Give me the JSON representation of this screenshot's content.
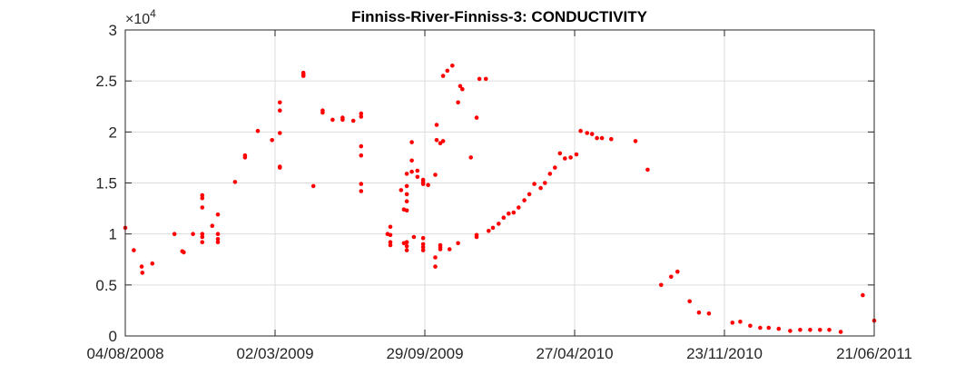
{
  "chart_data": {
    "type": "scatter",
    "title": "Finniss-River-Finniss-3: CONDUCTIVITY",
    "xlabel": "",
    "ylabel": "",
    "x_axis_type": "date",
    "xlim": [
      "2008-08-04",
      "2011-06-21"
    ],
    "xticks": [
      "04/08/2008",
      "02/03/2009",
      "29/09/2009",
      "27/04/2010",
      "23/11/2010",
      "21/06/2011"
    ],
    "ylim": [
      0,
      30000
    ],
    "yticks": [
      "0",
      "0.5",
      "1",
      "1.5",
      "2",
      "2.5",
      "3"
    ],
    "y_multiplier": {
      "base": "×10",
      "exponent": "4"
    },
    "grid": true,
    "marker_color": "#ff0000",
    "series": [
      {
        "points": [
          [
            "2008-08-04",
            10600
          ],
          [
            "2008-08-16",
            8400
          ],
          [
            "2008-08-27",
            6800
          ],
          [
            "2008-08-28",
            6200
          ],
          [
            "2008-09-11",
            7100
          ],
          [
            "2008-10-12",
            10000
          ],
          [
            "2008-10-23",
            8300
          ],
          [
            "2008-10-25",
            8200
          ],
          [
            "2008-11-07",
            10000
          ],
          [
            "2008-11-20",
            13800
          ],
          [
            "2008-11-20",
            13500
          ],
          [
            "2008-11-20",
            12600
          ],
          [
            "2008-11-20",
            10000
          ],
          [
            "2008-11-20",
            9700
          ],
          [
            "2008-11-20",
            9200
          ],
          [
            "2008-12-04",
            10800
          ],
          [
            "2008-12-12",
            11900
          ],
          [
            "2008-12-12",
            10000
          ],
          [
            "2008-12-12",
            9500
          ],
          [
            "2008-12-12",
            9200
          ],
          [
            "2009-01-05",
            15100
          ],
          [
            "2009-01-19",
            17700
          ],
          [
            "2009-01-19",
            17500
          ],
          [
            "2009-02-06",
            20100
          ],
          [
            "2009-02-26",
            19200
          ],
          [
            "2009-03-09",
            22900
          ],
          [
            "2009-03-09",
            22100
          ],
          [
            "2009-03-09",
            19900
          ],
          [
            "2009-03-09",
            16600
          ],
          [
            "2009-03-09",
            16500
          ],
          [
            "2009-04-11",
            25800
          ],
          [
            "2009-04-11",
            25600
          ],
          [
            "2009-04-11",
            25500
          ],
          [
            "2009-04-25",
            14700
          ],
          [
            "2009-05-08",
            22100
          ],
          [
            "2009-05-08",
            21900
          ],
          [
            "2009-05-22",
            21200
          ],
          [
            "2009-06-05",
            21400
          ],
          [
            "2009-06-05",
            21200
          ],
          [
            "2009-06-20",
            21100
          ],
          [
            "2009-07-01",
            21800
          ],
          [
            "2009-07-01",
            21500
          ],
          [
            "2009-07-01",
            18600
          ],
          [
            "2009-07-01",
            17700
          ],
          [
            "2009-07-01",
            14900
          ],
          [
            "2009-07-01",
            14200
          ],
          [
            "2009-08-07",
            10000
          ],
          [
            "2009-08-11",
            10700
          ],
          [
            "2009-08-11",
            9900
          ],
          [
            "2009-08-11",
            9200
          ],
          [
            "2009-08-11",
            8900
          ],
          [
            "2009-08-26",
            14300
          ],
          [
            "2009-08-30",
            9100
          ],
          [
            "2009-08-30",
            12400
          ],
          [
            "2009-09-03",
            15900
          ],
          [
            "2009-09-03",
            14700
          ],
          [
            "2009-09-03",
            13900
          ],
          [
            "2009-09-03",
            13200
          ],
          [
            "2009-09-03",
            12300
          ],
          [
            "2009-09-03",
            9200
          ],
          [
            "2009-09-03",
            8800
          ],
          [
            "2009-09-03",
            8400
          ],
          [
            "2009-09-10",
            19000
          ],
          [
            "2009-09-10",
            17200
          ],
          [
            "2009-09-10",
            16100
          ],
          [
            "2009-09-13",
            9700
          ],
          [
            "2009-09-18",
            16200
          ],
          [
            "2009-09-18",
            15600
          ],
          [
            "2009-09-26",
            15300
          ],
          [
            "2009-09-26",
            15100
          ],
          [
            "2009-09-26",
            14900
          ],
          [
            "2009-09-26",
            9600
          ],
          [
            "2009-09-26",
            9000
          ],
          [
            "2009-09-26",
            8700
          ],
          [
            "2009-09-26",
            8400
          ],
          [
            "2009-10-03",
            14800
          ],
          [
            "2009-10-13",
            15800
          ],
          [
            "2009-10-13",
            7700
          ],
          [
            "2009-10-13",
            6800
          ],
          [
            "2009-10-15",
            20700
          ],
          [
            "2009-10-15",
            19200
          ],
          [
            "2009-10-20",
            18900
          ],
          [
            "2009-10-20",
            8900
          ],
          [
            "2009-10-20",
            8700
          ],
          [
            "2009-10-20",
            8500
          ],
          [
            "2009-10-24",
            19100
          ],
          [
            "2009-10-24",
            25500
          ],
          [
            "2009-10-30",
            26000
          ],
          [
            "2009-11-02",
            8500
          ],
          [
            "2009-11-06",
            26500
          ],
          [
            "2009-11-14",
            22900
          ],
          [
            "2009-11-14",
            9100
          ],
          [
            "2009-11-17",
            24500
          ],
          [
            "2009-11-20",
            24200
          ],
          [
            "2009-12-02",
            17500
          ],
          [
            "2009-12-10",
            21400
          ],
          [
            "2009-12-10",
            9900
          ],
          [
            "2009-12-10",
            9700
          ],
          [
            "2009-12-14",
            25200
          ],
          [
            "2009-12-23",
            25200
          ],
          [
            "2009-12-27",
            10300
          ],
          [
            "2010-01-02",
            10600
          ],
          [
            "2010-01-10",
            11000
          ],
          [
            "2010-01-17",
            11600
          ],
          [
            "2010-01-24",
            12000
          ],
          [
            "2010-01-31",
            12100
          ],
          [
            "2010-02-07",
            12600
          ],
          [
            "2010-02-15",
            13300
          ],
          [
            "2010-02-22",
            13900
          ],
          [
            "2010-03-01",
            14900
          ],
          [
            "2010-03-10",
            14500
          ],
          [
            "2010-03-16",
            15000
          ],
          [
            "2010-03-23",
            15900
          ],
          [
            "2010-03-30",
            16500
          ],
          [
            "2010-04-06",
            17900
          ],
          [
            "2010-04-13",
            17400
          ],
          [
            "2010-04-21",
            17500
          ],
          [
            "2010-04-29",
            17800
          ],
          [
            "2010-05-05",
            20100
          ],
          [
            "2010-05-14",
            19900
          ],
          [
            "2010-05-21",
            19800
          ],
          [
            "2010-05-28",
            19400
          ],
          [
            "2010-06-04",
            19400
          ],
          [
            "2010-06-17",
            19300
          ],
          [
            "2010-07-21",
            19100
          ],
          [
            "2010-08-07",
            16300
          ],
          [
            "2010-08-26",
            5000
          ],
          [
            "2010-09-09",
            5800
          ],
          [
            "2010-09-18",
            6300
          ],
          [
            "2010-10-05",
            3400
          ],
          [
            "2010-10-18",
            2300
          ],
          [
            "2010-11-01",
            2200
          ],
          [
            "2010-12-04",
            1300
          ],
          [
            "2010-12-15",
            1400
          ],
          [
            "2010-12-29",
            1000
          ],
          [
            "2011-01-12",
            800
          ],
          [
            "2011-01-24",
            800
          ],
          [
            "2011-02-07",
            700
          ],
          [
            "2011-02-23",
            500
          ],
          [
            "2011-03-09",
            600
          ],
          [
            "2011-03-23",
            600
          ],
          [
            "2011-04-06",
            600
          ],
          [
            "2011-04-19",
            600
          ],
          [
            "2011-05-05",
            400
          ],
          [
            "2011-06-05",
            4000
          ],
          [
            "2011-06-21",
            1500
          ]
        ]
      }
    ]
  }
}
